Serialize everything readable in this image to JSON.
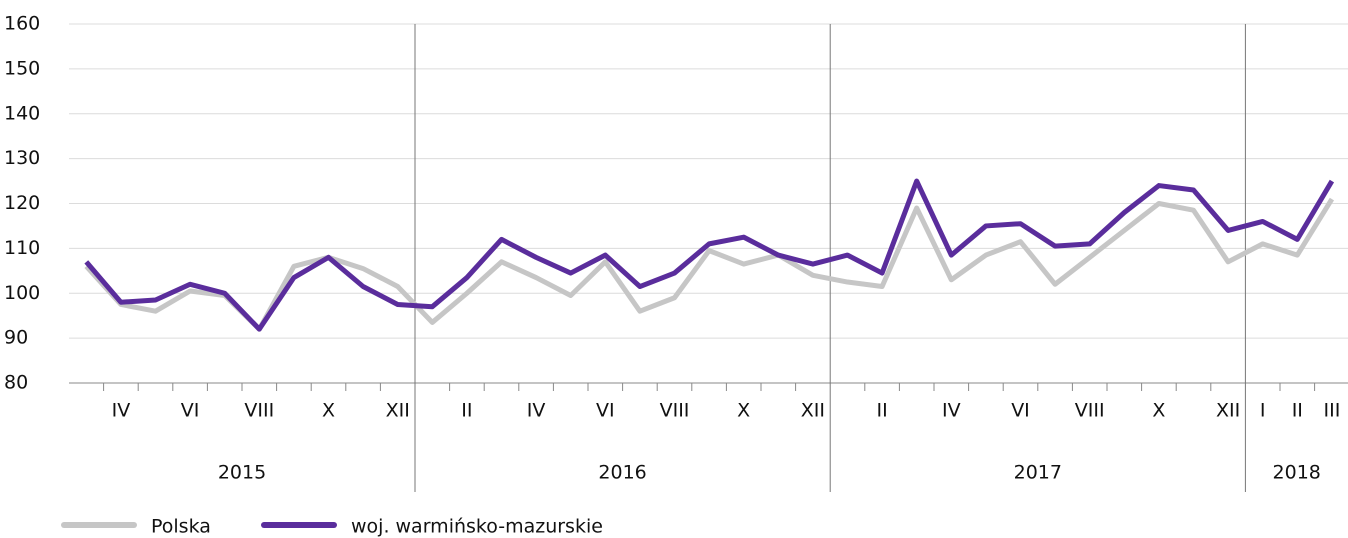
{
  "chart_data": {
    "type": "line",
    "categories": [
      null,
      "IV",
      null,
      "VI",
      null,
      "VIII",
      null,
      "X",
      null,
      "XII",
      null,
      "II",
      null,
      "IV",
      null,
      "VI",
      null,
      "VIII",
      null,
      "X",
      null,
      "XII",
      null,
      "II",
      null,
      "IV",
      null,
      "VI",
      null,
      "VIII",
      null,
      "X",
      null,
      "XII",
      "I",
      "II",
      "III"
    ],
    "years": [
      "2015",
      "2016",
      "2017",
      "2018"
    ],
    "series": [
      {
        "name": "Polska",
        "color": "#c6c6c6",
        "values": [
          106,
          97.5,
          96,
          100.5,
          99.5,
          92,
          106,
          108,
          105.5,
          101.5,
          93.5,
          100,
          107,
          103.5,
          99.5,
          107,
          96,
          99,
          109.5,
          106.5,
          108.5,
          104,
          102.5,
          101.5,
          119,
          103,
          108.5,
          111.5,
          102,
          108,
          114,
          120,
          118.5,
          107,
          111,
          108.5,
          121
        ]
      },
      {
        "name": "woj. warmińsko-mazurskie",
        "color": "#5a2d9c",
        "values": [
          107,
          98,
          98.5,
          102,
          100,
          92,
          103.5,
          108,
          101.5,
          97.5,
          97,
          103.5,
          112,
          108,
          104.5,
          108.5,
          101.5,
          104.5,
          111,
          112.5,
          108.5,
          106.5,
          108.5,
          104.5,
          125,
          108.5,
          115,
          115.5,
          110.5,
          111,
          118,
          124,
          123,
          114,
          116,
          112,
          125
        ]
      }
    ],
    "ylim": [
      80,
      160
    ],
    "yticks": [
      80,
      90,
      100,
      110,
      120,
      130,
      140,
      150,
      160
    ],
    "grid": true,
    "legend": "bottom-left"
  }
}
